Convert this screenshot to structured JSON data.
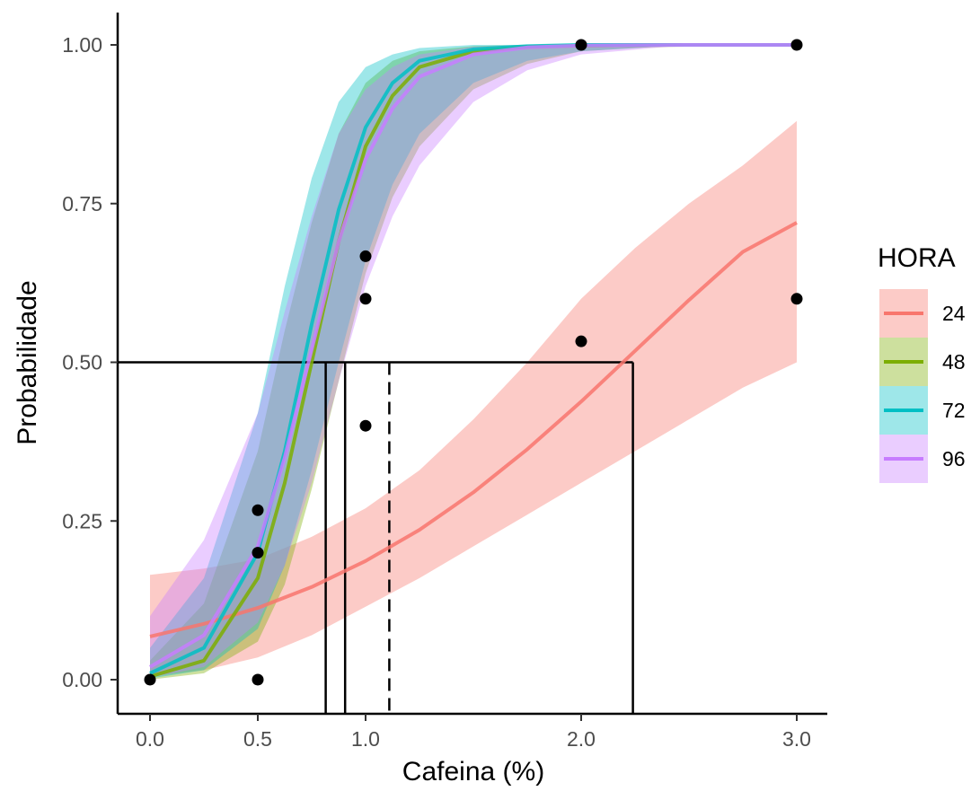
{
  "chart_data": {
    "type": "line",
    "xlabel": "Cafeina (%)",
    "ylabel": "Probabilidade",
    "xlim": [
      -0.15,
      3.15
    ],
    "ylim": [
      -0.05,
      1.05
    ],
    "x_ticks": [
      0,
      0.5,
      1,
      2,
      3
    ],
    "x_tick_labels": [
      "0.0",
      "0.5",
      "1.0",
      "2.0",
      "3.0"
    ],
    "y_ticks": [
      0,
      0.25,
      0.5,
      0.75,
      1
    ],
    "y_tick_labels": [
      "0.00",
      "0.25",
      "0.50",
      "0.75",
      "1.00"
    ],
    "grid": false,
    "legend": {
      "title": "HORA",
      "placement": "right",
      "entries": [
        "24",
        "48",
        "72",
        "96"
      ]
    },
    "series": [
      {
        "name": "24",
        "color": "#F8766D",
        "x": [
          0,
          0.25,
          0.5,
          0.75,
          1,
          1.25,
          1.5,
          1.75,
          2,
          2.25,
          2.5,
          2.75,
          3
        ],
        "fit": [
          0.068,
          0.088,
          0.113,
          0.146,
          0.187,
          0.236,
          0.295,
          0.363,
          0.438,
          0.518,
          0.598,
          0.674,
          0.72
        ],
        "ci_lower": [
          0.005,
          0.015,
          0.035,
          0.07,
          0.115,
          0.16,
          0.21,
          0.26,
          0.31,
          0.36,
          0.41,
          0.46,
          0.5
        ],
        "ci_upper": [
          0.165,
          0.175,
          0.19,
          0.225,
          0.27,
          0.33,
          0.41,
          0.5,
          0.6,
          0.68,
          0.75,
          0.81,
          0.88
        ]
      },
      {
        "name": "48",
        "color": "#7CAE00",
        "x": [
          0,
          0.25,
          0.5,
          0.625,
          0.75,
          0.875,
          1,
          1.125,
          1.25,
          1.5,
          1.75,
          2,
          2.5,
          3
        ],
        "fit": [
          0.005,
          0.03,
          0.16,
          0.31,
          0.5,
          0.69,
          0.84,
          0.92,
          0.965,
          0.99,
          0.997,
          0.999,
          1,
          1
        ],
        "ci_lower": [
          0,
          0.01,
          0.06,
          0.15,
          0.3,
          0.47,
          0.64,
          0.76,
          0.84,
          0.93,
          0.97,
          0.99,
          1,
          1
        ],
        "ci_upper": [
          0.03,
          0.12,
          0.36,
          0.55,
          0.72,
          0.86,
          0.94,
          0.975,
          0.99,
          0.998,
          1,
          1,
          1,
          1
        ]
      },
      {
        "name": "72",
        "color": "#00BFC4",
        "x": [
          0,
          0.25,
          0.5,
          0.625,
          0.75,
          0.875,
          1,
          1.125,
          1.25,
          1.5,
          1.75,
          2,
          2.5,
          3
        ],
        "fit": [
          0.01,
          0.05,
          0.2,
          0.36,
          0.56,
          0.74,
          0.87,
          0.94,
          0.975,
          0.993,
          0.998,
          1,
          1,
          1
        ],
        "ci_lower": [
          0.002,
          0.015,
          0.08,
          0.18,
          0.33,
          0.5,
          0.66,
          0.78,
          0.86,
          0.94,
          0.975,
          0.99,
          1,
          1
        ],
        "ci_upper": [
          0.05,
          0.16,
          0.42,
          0.62,
          0.79,
          0.91,
          0.965,
          0.985,
          0.995,
          1,
          1,
          1,
          1,
          1
        ]
      },
      {
        "name": "96",
        "color": "#C77CFF",
        "x": [
          0,
          0.25,
          0.5,
          0.625,
          0.75,
          0.875,
          1,
          1.125,
          1.25,
          1.5,
          1.75,
          2,
          2.5,
          3
        ],
        "fit": [
          0.02,
          0.07,
          0.21,
          0.35,
          0.52,
          0.69,
          0.82,
          0.9,
          0.95,
          0.985,
          0.996,
          0.999,
          1,
          1
        ],
        "ci_lower": [
          0.003,
          0.02,
          0.09,
          0.18,
          0.31,
          0.47,
          0.62,
          0.73,
          0.81,
          0.91,
          0.96,
          0.985,
          1,
          1
        ],
        "ci_upper": [
          0.1,
          0.22,
          0.42,
          0.58,
          0.73,
          0.86,
          0.93,
          0.965,
          0.985,
          0.997,
          1,
          1,
          1,
          1
        ]
      }
    ],
    "observed_points": [
      {
        "x": 0,
        "y": 0
      },
      {
        "x": 0.5,
        "y": 0
      },
      {
        "x": 0.5,
        "y": 0.2
      },
      {
        "x": 0.5,
        "y": 0.267
      },
      {
        "x": 1,
        "y": 0.4
      },
      {
        "x": 1,
        "y": 0.6
      },
      {
        "x": 1,
        "y": 0.667
      },
      {
        "x": 2,
        "y": 0.533
      },
      {
        "x": 2,
        "y": 1
      },
      {
        "x": 3,
        "y": 0.6
      },
      {
        "x": 3,
        "y": 1
      }
    ],
    "reference_lines": {
      "horizontal_y": 0.5,
      "horizontal_x_end": 2.24,
      "vertical_solid_x": [
        0.815,
        0.905,
        2.24
      ],
      "vertical_dashed_x": [
        1.11
      ]
    }
  }
}
